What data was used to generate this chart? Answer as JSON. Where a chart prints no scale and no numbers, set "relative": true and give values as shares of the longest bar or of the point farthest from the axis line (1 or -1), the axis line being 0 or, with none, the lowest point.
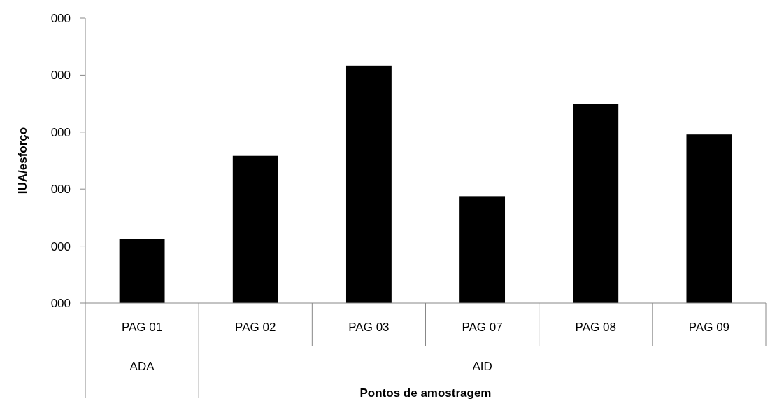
{
  "chart_data": {
    "type": "bar",
    "xlabel": "Pontos de amostragem",
    "ylabel": "IUA/esforço",
    "categories": [
      "PAG 01",
      "PAG 02",
      "PAG 03",
      "PAG 07",
      "PAG 08",
      "PAG 09"
    ],
    "values": [
      0.27,
      0.62,
      1,
      0.45,
      0.84,
      0.71
    ],
    "color": "#000000",
    "relative": true,
    "annotations": [
      "ADA",
      "AID",
      "000",
      "000",
      "000",
      "000",
      "000",
      "000"
    ]
  }
}
